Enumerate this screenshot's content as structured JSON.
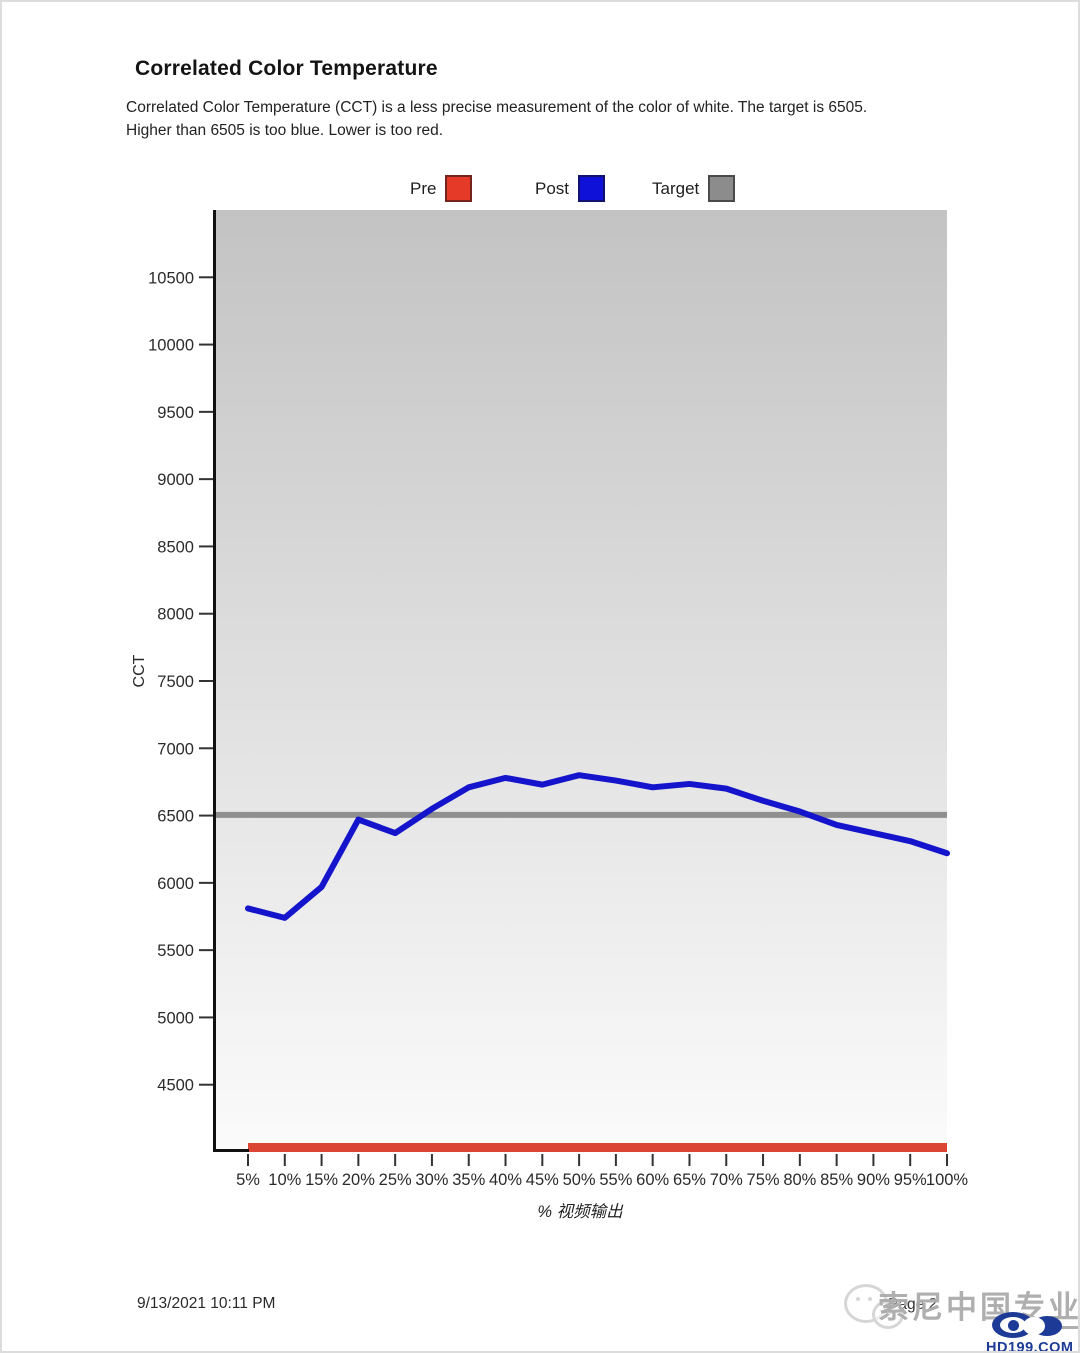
{
  "page": {
    "title": "Correlated Color Temperature",
    "description": "Correlated Color Temperature (CCT) is a less precise measurement of the color of white. The target is 6505.\nHigher than 6505 is too blue. Lower is too red.",
    "footer": {
      "datetime": "9/13/2021 10:11 PM",
      "page_label": "Page 2"
    },
    "watermark": {
      "text_main": "索尼中国",
      "text_underlined": "专业",
      "site": "HD199.COM",
      "wechat_icon": "wechat-bubbles-icon",
      "logo_icon": "eye-logo-icon",
      "brand_color": "#1d3a96"
    }
  },
  "legend": {
    "items": [
      {
        "label": "Pre",
        "color": "#e63a29"
      },
      {
        "label": "Post",
        "color": "#0f10d8"
      },
      {
        "label": "Target",
        "color": "#8c8c8c"
      }
    ]
  },
  "chart_data": {
    "type": "line",
    "title": "Correlated Color Temperature",
    "xlabel": "% 视频输出",
    "ylabel": "CCT",
    "ylim": [
      4000,
      11000
    ],
    "y_ticks": [
      4500,
      5000,
      5500,
      6000,
      6500,
      7000,
      7500,
      8000,
      8500,
      9000,
      9500,
      10000,
      10500
    ],
    "categories": [
      "5%",
      "10%",
      "15%",
      "20%",
      "25%",
      "30%",
      "35%",
      "40%",
      "45%",
      "50%",
      "55%",
      "60%",
      "65%",
      "70%",
      "75%",
      "80%",
      "85%",
      "90%",
      "95%",
      "100%"
    ],
    "grid": false,
    "legend_position": "top",
    "plot_background": {
      "gradient_top": "#c3c3c3",
      "gradient_bottom": "#fbfbfb"
    },
    "target_value": 6505,
    "series": [
      {
        "name": "Pre",
        "color": "#db4533",
        "note": "flat line clipped at bottom of axis",
        "values": [
          4000,
          4000,
          4000,
          4000,
          4000,
          4000,
          4000,
          4000,
          4000,
          4000,
          4000,
          4000,
          4000,
          4000,
          4000,
          4000,
          4000,
          4000,
          4000,
          4000
        ]
      },
      {
        "name": "Post",
        "color": "#1414cc",
        "values": [
          5810,
          5740,
          5970,
          6470,
          6370,
          6550,
          6710,
          6780,
          6730,
          6800,
          6760,
          6710,
          6735,
          6700,
          6610,
          6530,
          6430,
          6370,
          6310,
          6220
        ]
      },
      {
        "name": "Target",
        "color": "#8f8f8f",
        "values": [
          6505,
          6505,
          6505,
          6505,
          6505,
          6505,
          6505,
          6505,
          6505,
          6505,
          6505,
          6505,
          6505,
          6505,
          6505,
          6505,
          6505,
          6505,
          6505,
          6505
        ]
      }
    ]
  }
}
